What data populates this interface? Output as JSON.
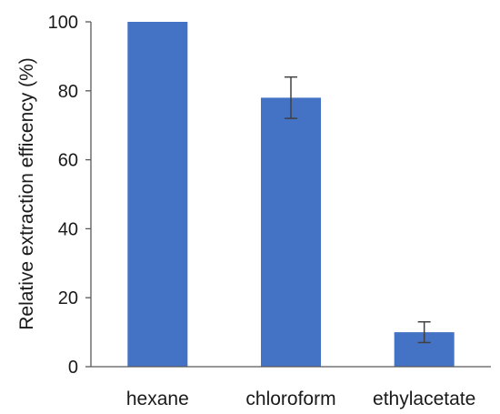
{
  "chart_data": {
    "type": "bar",
    "categories": [
      "hexane",
      "chloroform",
      "ethylacetate"
    ],
    "values": [
      100,
      78,
      10
    ],
    "error": [
      0,
      6,
      3
    ],
    "title": "",
    "xlabel": "",
    "ylabel": "Relative extraction efficency (%)",
    "ylim": [
      0,
      100
    ],
    "yticks": [
      0,
      20,
      40,
      60,
      80,
      100
    ],
    "grid": false,
    "bar_color": "#4472C4",
    "axis_color": "#595959",
    "error_color": "#404040"
  }
}
